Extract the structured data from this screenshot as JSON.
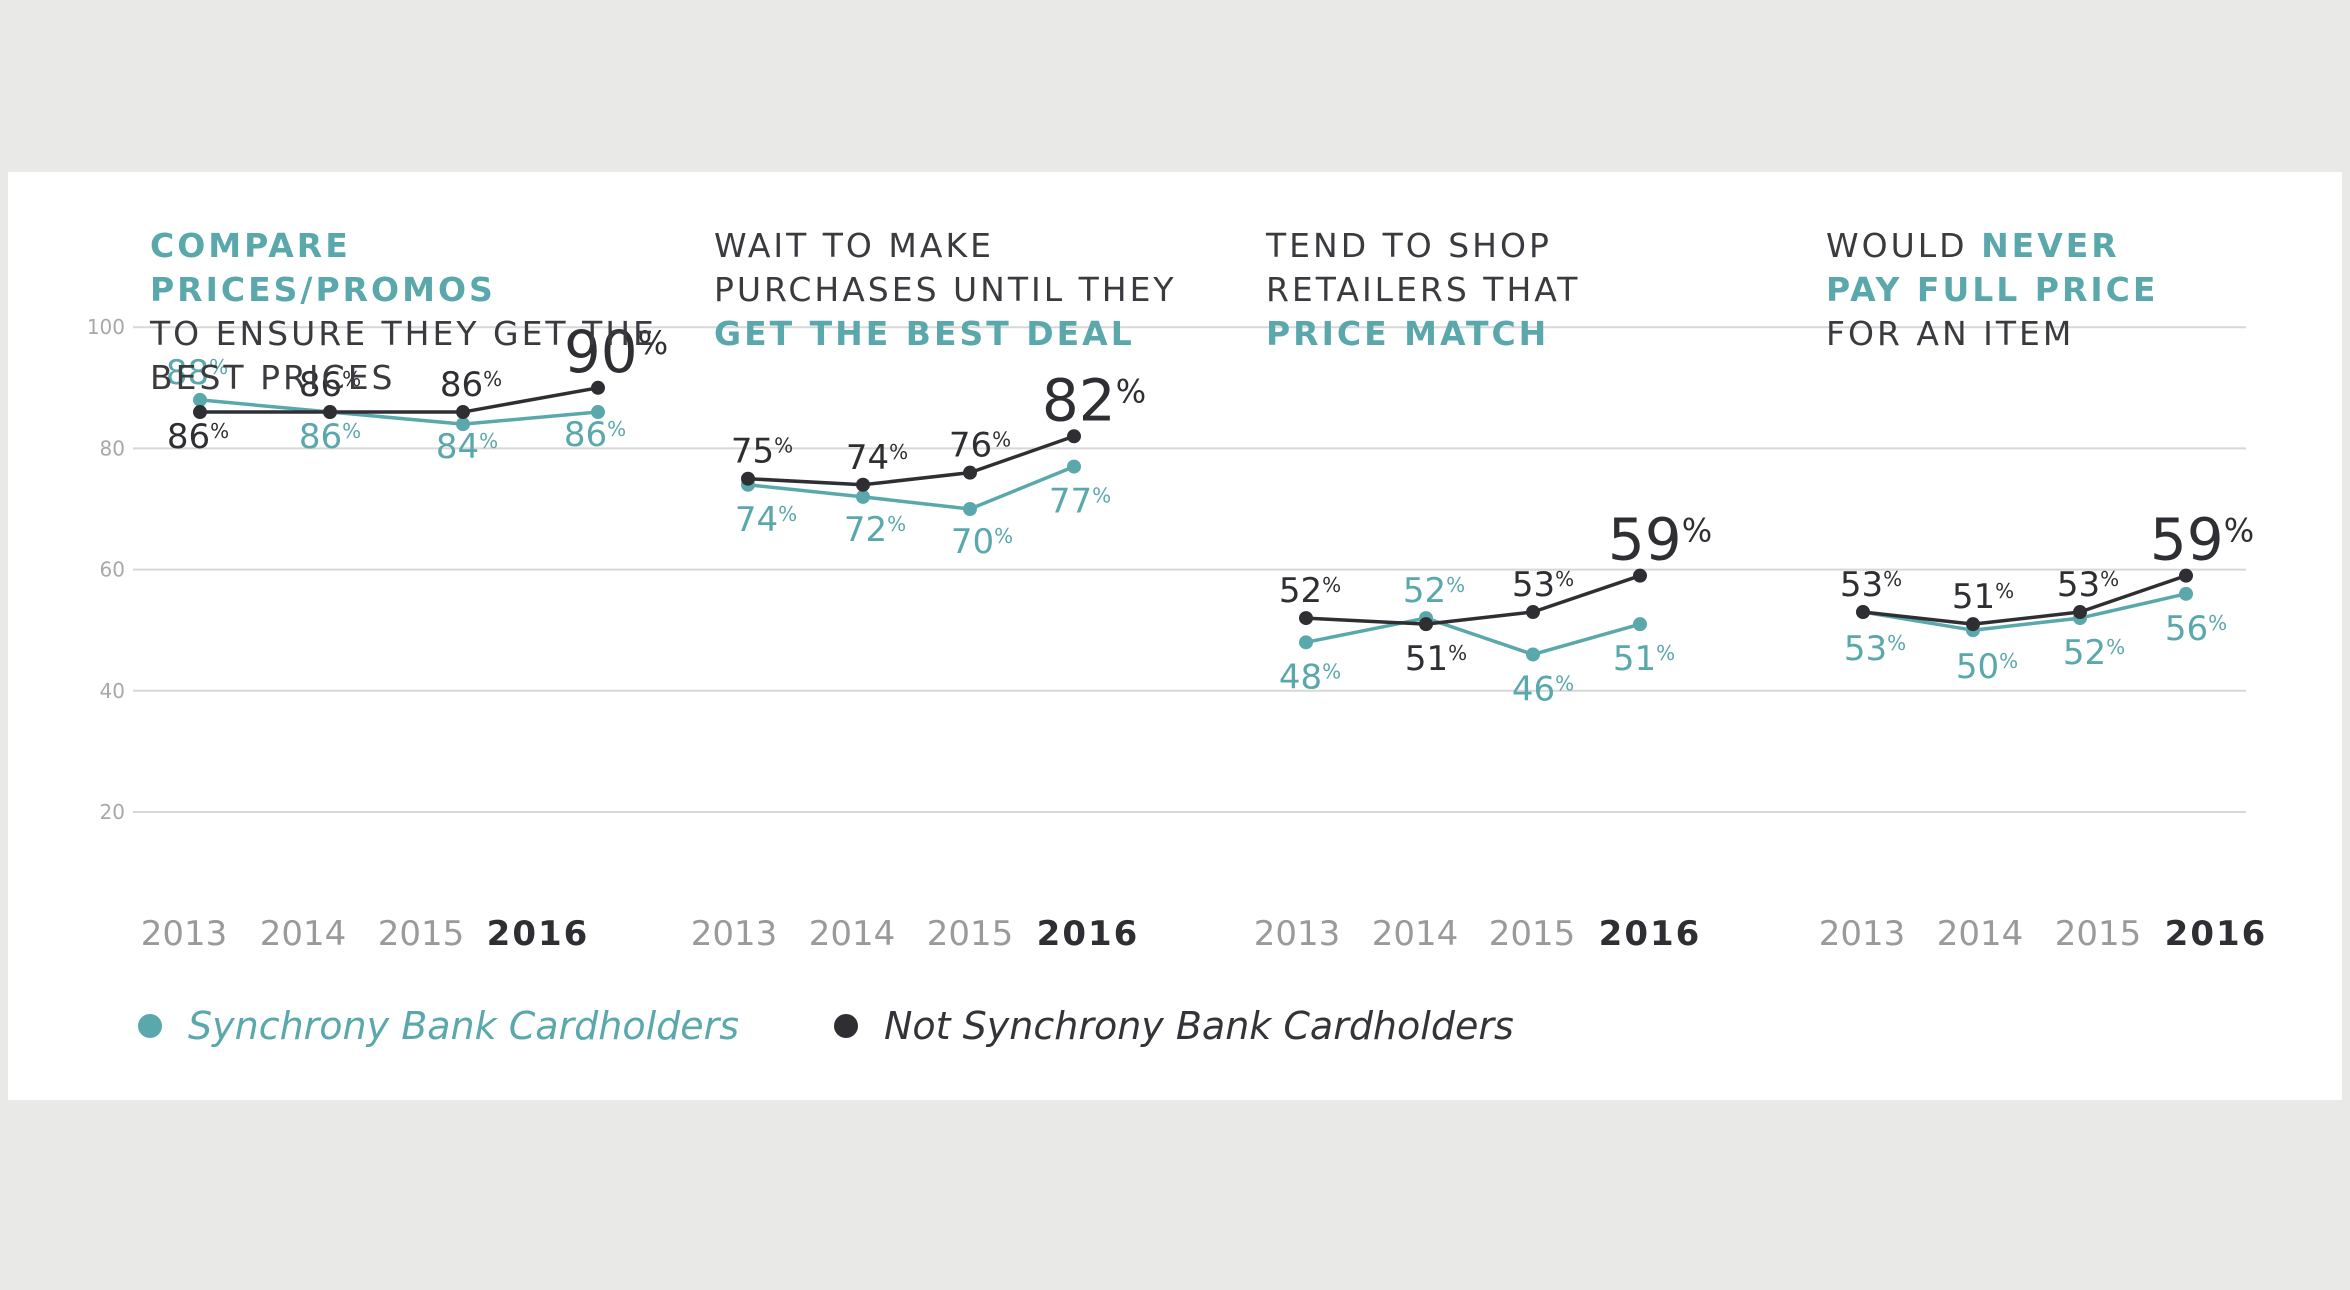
{
  "colors": {
    "teal": "#5aa8ab",
    "dark": "#2f2f33",
    "grid": "#d7d7d7",
    "axis": "#9a9a9a",
    "card": "#ffffff",
    "page": "#e9e9e7"
  },
  "titles": [
    {
      "before": "",
      "highlight": "COMPARE PRICES/PROMOS",
      "after": "TO ENSURE THEY GET THE BEST PRICES"
    },
    {
      "before": "WAIT TO MAKE PURCHASES UNTIL THEY",
      "highlight": "GET THE BEST DEAL",
      "after": ""
    },
    {
      "before": "TEND TO SHOP RETAILERS THAT",
      "highlight": "PRICE MATCH",
      "after": ""
    },
    {
      "before": "WOULD",
      "highlight": "NEVER PAY FULL PRICE",
      "after": "FOR AN ITEM"
    }
  ],
  "legend": {
    "synchrony": "Synchrony Bank Cardholders",
    "not_synchrony": "Not Synchrony Bank Cardholders"
  },
  "chart_data": {
    "type": "line",
    "y_ticks": [
      100,
      80,
      60,
      40,
      20
    ],
    "ylim": [
      20,
      100
    ],
    "grid": true,
    "categories": [
      "2013",
      "2014",
      "2015",
      "2016"
    ],
    "percent_suffix": "%",
    "panels": [
      {
        "title": "COMPARE PRICES/PROMOS TO ENSURE THEY GET THE BEST PRICES",
        "series": [
          {
            "name": "Synchrony Bank Cardholders",
            "values": [
              88,
              86,
              84,
              86
            ],
            "labels": [
              "88",
              "86",
              "84",
              "86"
            ]
          },
          {
            "name": "Not Synchrony Bank Cardholders",
            "values": [
              86,
              86,
              86,
              90
            ],
            "labels": [
              "86",
              "86",
              "86",
              "90"
            ]
          }
        ]
      },
      {
        "title": "WAIT TO MAKE PURCHASES UNTIL THEY GET THE BEST DEAL",
        "series": [
          {
            "name": "Synchrony Bank Cardholders",
            "values": [
              74,
              72,
              70,
              77
            ],
            "labels": [
              "74",
              "72",
              "70",
              "77"
            ]
          },
          {
            "name": "Not Synchrony Bank Cardholders",
            "values": [
              75,
              74,
              76,
              82
            ],
            "labels": [
              "75",
              "74",
              "76",
              "82"
            ]
          }
        ]
      },
      {
        "title": "TEND TO SHOP RETAILERS THAT PRICE MATCH",
        "series": [
          {
            "name": "Synchrony Bank Cardholders",
            "values": [
              48,
              52,
              46,
              51
            ],
            "labels": [
              "48",
              "52",
              "46",
              "51"
            ]
          },
          {
            "name": "Not Synchrony Bank Cardholders",
            "values": [
              52,
              51,
              53,
              59
            ],
            "labels": [
              "52",
              "51",
              "53",
              "59"
            ]
          }
        ]
      },
      {
        "title": "WOULD NEVER PAY FULL PRICE FOR AN ITEM",
        "series": [
          {
            "name": "Synchrony Bank Cardholders",
            "values": [
              53,
              50,
              52,
              56
            ],
            "labels": [
              "53",
              "50",
              "52",
              "56"
            ]
          },
          {
            "name": "Not Synchrony Bank Cardholders",
            "values": [
              53,
              51,
              53,
              59
            ],
            "labels": [
              "53",
              "51",
              "53",
              "59"
            ]
          }
        ]
      }
    ]
  }
}
